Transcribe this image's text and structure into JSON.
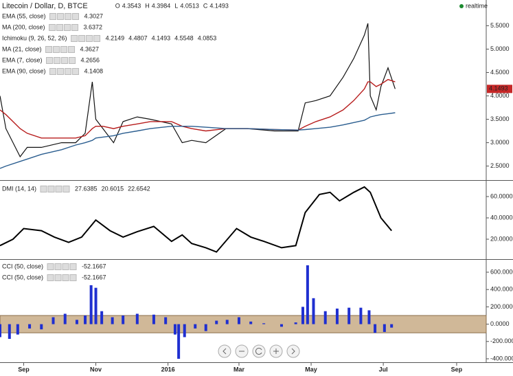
{
  "header": {
    "realtime": "realtime"
  },
  "chart_data": [
    {
      "type": "line",
      "title": "Litecoin / Dollar, D, BTCE",
      "ohlc": [
        {
          "label": "O",
          "value": 4.3543
        },
        {
          "label": "H",
          "value": 4.3984
        },
        {
          "label": "L",
          "value": 4.0513
        },
        {
          "label": "C",
          "value": 4.1493
        }
      ],
      "xlim": [
        -20,
        391
      ],
      "ylim": [
        2.2,
        6.05
      ],
      "yticks": [
        {
          "value": 2.5,
          "label": "2.5000"
        },
        {
          "value": 3.0,
          "label": "3.0000"
        },
        {
          "value": 3.5,
          "label": "3.5000"
        },
        {
          "value": 4.0,
          "label": "4.0000"
        },
        {
          "value": 4.5,
          "label": "4.5000"
        },
        {
          "value": 5.0,
          "label": "5.0000"
        },
        {
          "value": 5.5,
          "label": "5.5000"
        }
      ],
      "x": [
        -20,
        -15,
        -3,
        3,
        15,
        32,
        44,
        52,
        58,
        61,
        67,
        76,
        84,
        96,
        107,
        125,
        134,
        142,
        154,
        171,
        189,
        212,
        232,
        238,
        247,
        259,
        270,
        279,
        288,
        291,
        293,
        298,
        302,
        308,
        314
      ],
      "values": [
        4.0,
        3.3,
        2.7,
        2.9,
        2.9,
        3.0,
        3.0,
        3.2,
        4.3,
        3.5,
        3.3,
        3.0,
        3.45,
        3.55,
        3.5,
        3.4,
        3.0,
        3.05,
        3.0,
        3.3,
        3.3,
        3.25,
        3.25,
        3.85,
        3.9,
        4.0,
        4.4,
        4.8,
        5.3,
        5.55,
        4.0,
        3.7,
        4.2,
        4.6,
        4.15
      ],
      "color": "#111111",
      "series": [
        {
          "name": "EMA (55, close)",
          "color": "#b71c1c",
          "legend_values": [
            4.3027
          ],
          "values": [
            3.7,
            3.6,
            3.3,
            3.2,
            3.1,
            3.1,
            3.1,
            3.15,
            3.3,
            3.35,
            3.35,
            3.3,
            3.35,
            3.4,
            3.45,
            3.45,
            3.35,
            3.3,
            3.25,
            3.3,
            3.3,
            3.28,
            3.27,
            3.35,
            3.45,
            3.55,
            3.7,
            3.9,
            4.15,
            4.3,
            4.3,
            4.2,
            4.25,
            4.35,
            4.3
          ]
        },
        {
          "name": "MA (200, close)",
          "color": "#2a5d8f",
          "legend_values": [
            3.6372
          ],
          "values": [
            2.45,
            2.5,
            2.6,
            2.65,
            2.75,
            2.85,
            2.95,
            3.0,
            3.05,
            3.1,
            3.12,
            3.15,
            3.2,
            3.25,
            3.3,
            3.35,
            3.35,
            3.35,
            3.33,
            3.3,
            3.3,
            3.28,
            3.27,
            3.28,
            3.3,
            3.33,
            3.38,
            3.43,
            3.48,
            3.52,
            3.55,
            3.58,
            3.6,
            3.62,
            3.64
          ]
        },
        {
          "name": "Ichimoku (9, 26, 52, 26)",
          "color": "#1565c0",
          "legend_values": [
            4.2149,
            4.4807,
            4.1493,
            4.5548,
            4.0853
          ],
          "legend_colors": [
            "#1565c0",
            "#b71c1c",
            "#2e7d32",
            "#2e7d32",
            "#b71c1c"
          ]
        },
        {
          "name": "MA (21, close)",
          "color": "#1a237e",
          "legend_values": [
            4.3627
          ]
        },
        {
          "name": "EMA (7, close)",
          "color": "#1a237e",
          "legend_values": [
            4.2656
          ]
        },
        {
          "name": "EMA (90, close)",
          "color": "#1a237e",
          "legend_values": [
            4.1408
          ]
        }
      ]
    },
    {
      "type": "line",
      "xlim": [
        -20,
        391
      ],
      "ylim": [
        1.3,
        74.8
      ],
      "yticks": [
        {
          "value": 20,
          "label": "20.0000"
        },
        {
          "value": 40,
          "label": "40.0000"
        },
        {
          "value": 60,
          "label": "60.0000"
        }
      ],
      "x": [
        -20,
        -9,
        0,
        15,
        26,
        38,
        49,
        61,
        73,
        84,
        96,
        110,
        125,
        134,
        142,
        154,
        163,
        180,
        192,
        203,
        218,
        230,
        238,
        250,
        259,
        267,
        279,
        288,
        293,
        302,
        311
      ],
      "series": [
        {
          "name": "DMI (14, 14)",
          "color": "#000000",
          "legend_values": [
            27.6385,
            20.6015,
            22.6542
          ],
          "legend_colors": [
            "#000000",
            "#1565c0",
            "#e65100"
          ],
          "values": [
            14,
            20,
            30,
            28,
            22,
            17,
            22,
            38,
            28,
            22,
            27,
            32,
            18,
            24,
            16,
            12,
            8,
            30,
            22,
            18,
            12,
            14,
            45,
            62,
            64,
            56,
            64,
            69,
            64,
            40,
            28
          ]
        }
      ]
    },
    {
      "type": "bar",
      "xlim": [
        -20,
        391
      ],
      "xticks": [
        {
          "value": 0,
          "label": "Sep"
        },
        {
          "value": 61,
          "label": "Nov"
        },
        {
          "value": 122,
          "label": "2016"
        },
        {
          "value": 182,
          "label": "Mar"
        },
        {
          "value": 243,
          "label": "May"
        },
        {
          "value": 304,
          "label": "Jul"
        },
        {
          "value": 366,
          "label": "Sep"
        }
      ],
      "ylim": [
        -440,
        743
      ],
      "yticks": [
        {
          "value": -400,
          "label": "-400.0000"
        },
        {
          "value": -200,
          "label": "-200.0000"
        },
        {
          "value": 0,
          "label": "0.0000"
        },
        {
          "value": 200,
          "label": "200.0000"
        },
        {
          "value": 400,
          "label": "400.0000"
        },
        {
          "value": 600,
          "label": "600.0000"
        }
      ],
      "band": [
        -100,
        100
      ],
      "band_color": "#c8ab86",
      "x": [
        -20,
        -12,
        -5,
        5,
        15,
        25,
        35,
        45,
        52,
        57,
        61,
        66,
        75,
        84,
        96,
        110,
        120,
        128,
        131,
        136,
        145,
        154,
        163,
        172,
        182,
        192,
        203,
        218,
        230,
        236,
        240,
        245,
        255,
        265,
        275,
        285,
        292,
        297,
        305,
        311
      ],
      "series": [
        {
          "name": "CCI (50, close)",
          "color": "#1f2fd0",
          "legend_values": [
            -52.1667
          ],
          "values": [
            -150,
            -170,
            -120,
            -50,
            -60,
            80,
            120,
            50,
            100,
            450,
            420,
            150,
            80,
            100,
            120,
            110,
            80,
            -120,
            -400,
            -150,
            -50,
            -80,
            40,
            50,
            80,
            30,
            10,
            -30,
            20,
            200,
            680,
            300,
            150,
            180,
            190,
            190,
            160,
            -100,
            -90,
            -40
          ]
        },
        {
          "name": "CCI (50, close)",
          "color": "#1f2fd0",
          "legend_values": [
            -52.1667
          ]
        }
      ]
    }
  ]
}
